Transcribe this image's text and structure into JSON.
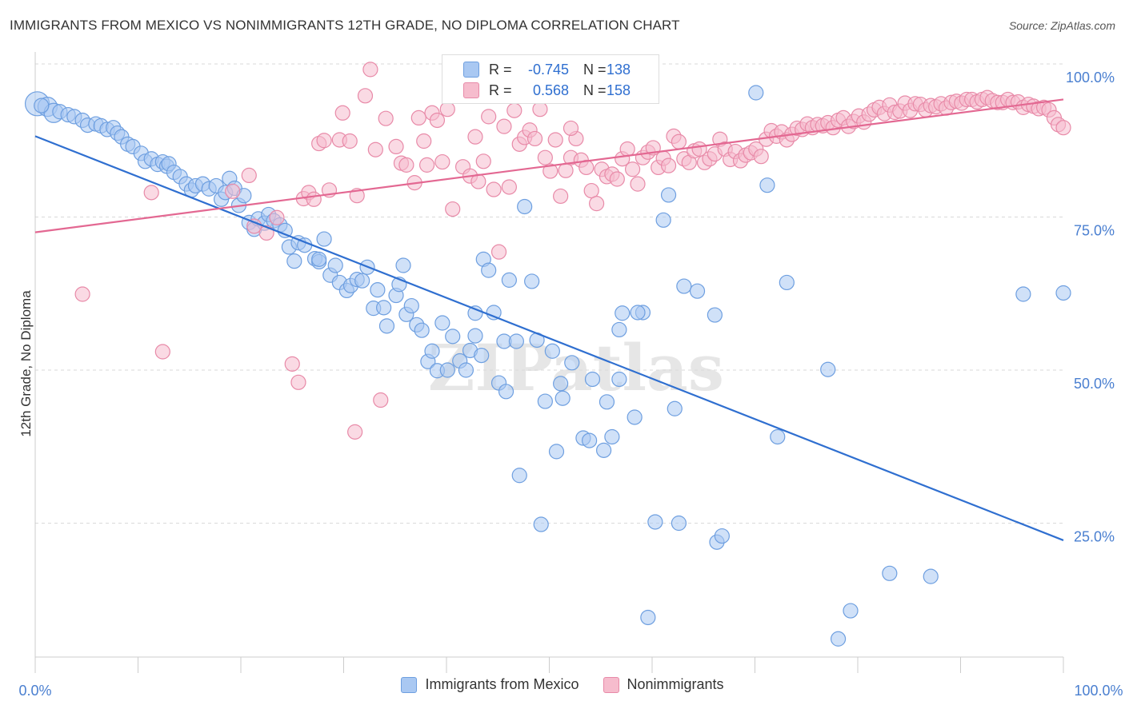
{
  "header": {
    "title": "IMMIGRANTS FROM MEXICO VS NONIMMIGRANTS 12TH GRADE, NO DIPLOMA CORRELATION CHART",
    "source": "Source: ZipAtlas.com"
  },
  "stats": {
    "series1": {
      "r_label": "R =",
      "r_value": "-0.745",
      "n_label": "N =",
      "n_value": "138"
    },
    "series2": {
      "r_label": "R =",
      "r_value": "0.568",
      "n_label": "N =",
      "n_value": "158"
    }
  },
  "legend": {
    "series1": "Immigrants from Mexico",
    "series2": "Nonimmigrants"
  },
  "colors": {
    "series1_fill": "#a9c8f2",
    "series1_stroke": "#6e9fe0",
    "series1_line": "#2f6fd0",
    "series2_fill": "#f6bccd",
    "series2_stroke": "#e88aa8",
    "series2_line": "#e36892",
    "axis_text": "#4a7fd0",
    "grid": "#d9d9d9"
  },
  "chart_data": {
    "type": "scatter",
    "title": "IMMIGRANTS FROM MEXICO VS NONIMMIGRANTS 12TH GRADE, NO DIPLOMA CORRELATION CHART",
    "xlabel": "",
    "ylabel": "12th Grade, No Diploma",
    "xlim": [
      0,
      100
    ],
    "ylim": [
      0,
      102
    ],
    "x_tick_labels": [
      "0.0%",
      "100.0%"
    ],
    "y_tick_values": [
      25,
      50,
      75,
      100
    ],
    "y_tick_labels": [
      "25.0%",
      "50.0%",
      "75.0%",
      "100.0%"
    ],
    "grid": true,
    "legend_position": "bottom-center",
    "watermark": "ZIPatlas",
    "series": [
      {
        "name": "Immigrants from Mexico",
        "r": -0.745,
        "n": 138,
        "trend": {
          "x": [
            0,
            100
          ],
          "y": [
            88.2,
            22.2
          ]
        },
        "points": [
          [
            0.2,
            93.5
          ],
          [
            1.2,
            93
          ],
          [
            1.8,
            92
          ],
          [
            2.4,
            92.2
          ],
          [
            3.2,
            91.7
          ],
          [
            3.8,
            91.4
          ],
          [
            4.6,
            90.8
          ],
          [
            5.1,
            90
          ],
          [
            5.9,
            90.2
          ],
          [
            6.4,
            89.9
          ],
          [
            7,
            89.3
          ],
          [
            7.6,
            89.6
          ],
          [
            8,
            88.7
          ],
          [
            8.4,
            88.1
          ],
          [
            9,
            86.9
          ],
          [
            9.5,
            86.5
          ],
          [
            10.3,
            85.4
          ],
          [
            10.7,
            84.1
          ],
          [
            11.3,
            84.5
          ],
          [
            11.9,
            83.6
          ],
          [
            12.4,
            84
          ],
          [
            12.8,
            83.3
          ],
          [
            13,
            83.7
          ],
          [
            13.5,
            82.3
          ],
          [
            14.1,
            81.6
          ],
          [
            14.7,
            80.4
          ],
          [
            15.2,
            79.4
          ],
          [
            15.6,
            80.1
          ],
          [
            16.3,
            80.4
          ],
          [
            16.9,
            79.6
          ],
          [
            17.6,
            80.1
          ],
          [
            18.1,
            77.9
          ],
          [
            18.5,
            79
          ],
          [
            18.9,
            81.3
          ],
          [
            19.4,
            79.7
          ],
          [
            19.8,
            76.9
          ],
          [
            20.3,
            78.5
          ],
          [
            20.8,
            74.1
          ],
          [
            21.3,
            73
          ],
          [
            21.7,
            74.7
          ],
          [
            22.3,
            74
          ],
          [
            22.7,
            75.4
          ],
          [
            23.2,
            74.4
          ],
          [
            23.8,
            73.7
          ],
          [
            24.3,
            72.8
          ],
          [
            24.7,
            70.1
          ],
          [
            25.2,
            67.8
          ],
          [
            25.6,
            70.8
          ],
          [
            26.2,
            70.4
          ],
          [
            27.2,
            68.2
          ],
          [
            27.6,
            67.7
          ],
          [
            28.1,
            71.4
          ],
          [
            28.7,
            65.5
          ],
          [
            29.2,
            67.1
          ],
          [
            29.6,
            64.3
          ],
          [
            30.3,
            63
          ],
          [
            30.7,
            63.8
          ],
          [
            31.3,
            64.8
          ],
          [
            31.8,
            64.6
          ],
          [
            32.3,
            66.8
          ],
          [
            32.9,
            60.1
          ],
          [
            33.3,
            63.1
          ],
          [
            33.9,
            60.2
          ],
          [
            34.2,
            57.2
          ],
          [
            35.1,
            62.2
          ],
          [
            35.4,
            64
          ],
          [
            35.8,
            67.1
          ],
          [
            36.1,
            59.1
          ],
          [
            36.6,
            60.5
          ],
          [
            37.1,
            57.4
          ],
          [
            37.6,
            56.5
          ],
          [
            38.2,
            51.4
          ],
          [
            38.6,
            53.1
          ],
          [
            39.1,
            49.9
          ],
          [
            39.6,
            57.7
          ],
          [
            40.1,
            50
          ],
          [
            40.6,
            55.5
          ],
          [
            41.3,
            51.5
          ],
          [
            41.9,
            50
          ],
          [
            42.3,
            53.2
          ],
          [
            42.8,
            55.6
          ],
          [
            43.4,
            52.4
          ],
          [
            43.6,
            68.1
          ],
          [
            44.1,
            66.3
          ],
          [
            44.6,
            59.4
          ],
          [
            45.1,
            47.9
          ],
          [
            45.6,
            54.7
          ],
          [
            45.8,
            46.5
          ],
          [
            46.1,
            64.7
          ],
          [
            46.8,
            54.7
          ],
          [
            47.1,
            32.8
          ],
          [
            47.6,
            76.7
          ],
          [
            48.3,
            64.5
          ],
          [
            48.8,
            54.9
          ],
          [
            49.2,
            24.8
          ],
          [
            49.6,
            44.9
          ],
          [
            50.3,
            53.1
          ],
          [
            50.7,
            36.7
          ],
          [
            51.1,
            47.8
          ],
          [
            51.3,
            45.4
          ],
          [
            52.2,
            51.2
          ],
          [
            53.3,
            38.9
          ],
          [
            53.9,
            38.5
          ],
          [
            54.2,
            48.5
          ],
          [
            55.3,
            36.9
          ],
          [
            55.6,
            44.8
          ],
          [
            56.1,
            39.1
          ],
          [
            56.8,
            56.6
          ],
          [
            57.1,
            59.3
          ],
          [
            58.3,
            42.3
          ],
          [
            59.1,
            59.4
          ],
          [
            59.6,
            9.6
          ],
          [
            60.3,
            25.2
          ],
          [
            61.1,
            74.5
          ],
          [
            61.6,
            78.6
          ],
          [
            62.2,
            43.7
          ],
          [
            62.6,
            25
          ],
          [
            63.1,
            63.7
          ],
          [
            64.4,
            62.9
          ],
          [
            66.1,
            59
          ],
          [
            66.3,
            21.9
          ],
          [
            66.8,
            22.9
          ],
          [
            70.1,
            95.3
          ],
          [
            71.2,
            80.2
          ],
          [
            72.2,
            39.1
          ],
          [
            73.1,
            64.3
          ],
          [
            77.1,
            50.1
          ],
          [
            78.1,
            6.1
          ],
          [
            79.3,
            10.7
          ],
          [
            83.1,
            16.8
          ],
          [
            87.1,
            16.3
          ],
          [
            96.1,
            62.4
          ],
          [
            100,
            62.6
          ],
          [
            0.6,
            93.2
          ],
          [
            58.6,
            59.4
          ],
          [
            56.8,
            48.5
          ],
          [
            27.6,
            68.1
          ],
          [
            42.8,
            59.3
          ]
        ]
      },
      {
        "name": "Nonimmigrants",
        "r": 0.568,
        "n": 158,
        "trend": {
          "x": [
            0,
            100
          ],
          "y": [
            72.5,
            94.2
          ]
        },
        "points": [
          [
            4.6,
            62.4
          ],
          [
            11.3,
            79
          ],
          [
            12.4,
            53
          ],
          [
            19.2,
            79.2
          ],
          [
            20.8,
            81.8
          ],
          [
            21.3,
            73.5
          ],
          [
            22.5,
            72.4
          ],
          [
            23.5,
            74.9
          ],
          [
            25,
            51
          ],
          [
            25.6,
            48
          ],
          [
            26.1,
            78
          ],
          [
            26.6,
            79
          ],
          [
            27.1,
            77.9
          ],
          [
            27.6,
            87
          ],
          [
            28.1,
            87.5
          ],
          [
            28.6,
            79.4
          ],
          [
            29.6,
            87.6
          ],
          [
            29.9,
            92
          ],
          [
            30.6,
            87.4
          ],
          [
            31.1,
            39.9
          ],
          [
            31.3,
            78.5
          ],
          [
            32.1,
            94.8
          ],
          [
            32.6,
            99.1
          ],
          [
            33.1,
            86
          ],
          [
            33.6,
            45.1
          ],
          [
            34.1,
            91.1
          ],
          [
            35.1,
            86.5
          ],
          [
            35.6,
            83.8
          ],
          [
            36.1,
            83.5
          ],
          [
            36.9,
            80.6
          ],
          [
            37.3,
            91.2
          ],
          [
            37.8,
            87.4
          ],
          [
            38.1,
            83.5
          ],
          [
            38.6,
            92
          ],
          [
            39.1,
            90.8
          ],
          [
            39.6,
            84
          ],
          [
            40.1,
            92.6
          ],
          [
            40.6,
            76.3
          ],
          [
            41.1,
            94.8
          ],
          [
            41.6,
            83.2
          ],
          [
            42.3,
            81.7
          ],
          [
            42.8,
            88.1
          ],
          [
            43.1,
            80.8
          ],
          [
            43.6,
            84.1
          ],
          [
            44.1,
            91.4
          ],
          [
            44.6,
            79.5
          ],
          [
            45.1,
            69.3
          ],
          [
            45.6,
            89.8
          ],
          [
            46.1,
            79.9
          ],
          [
            46.6,
            92.4
          ],
          [
            47.1,
            86.9
          ],
          [
            47.6,
            88
          ],
          [
            48.1,
            89.2
          ],
          [
            48.6,
            87.8
          ],
          [
            49.1,
            92.6
          ],
          [
            49.6,
            84.7
          ],
          [
            50.1,
            82.5
          ],
          [
            50.6,
            87.6
          ],
          [
            51.1,
            78.4
          ],
          [
            51.6,
            82.6
          ],
          [
            52.1,
            84.7
          ],
          [
            52.6,
            87.8
          ],
          [
            53.1,
            84.3
          ],
          [
            53.6,
            83.1
          ],
          [
            54.1,
            79.3
          ],
          [
            54.6,
            77.2
          ],
          [
            55.1,
            82.8
          ],
          [
            55.6,
            81.6
          ],
          [
            56.1,
            82
          ],
          [
            56.6,
            81.2
          ],
          [
            57.1,
            84.5
          ],
          [
            57.6,
            86.1
          ],
          [
            58.1,
            82.8
          ],
          [
            58.6,
            80.4
          ],
          [
            59.1,
            84.7
          ],
          [
            59.6,
            85.6
          ],
          [
            60.1,
            86.3
          ],
          [
            60.6,
            83.1
          ],
          [
            61.1,
            84.6
          ],
          [
            61.6,
            83.4
          ],
          [
            62.1,
            88.2
          ],
          [
            62.6,
            87.3
          ],
          [
            63.1,
            84.5
          ],
          [
            63.6,
            83.9
          ],
          [
            64.1,
            85.8
          ],
          [
            64.6,
            86.1
          ],
          [
            65.1,
            83.9
          ],
          [
            65.6,
            84.5
          ],
          [
            66.1,
            85.3
          ],
          [
            66.6,
            87.7
          ],
          [
            67.1,
            86.1
          ],
          [
            67.6,
            84.4
          ],
          [
            68.1,
            85.7
          ],
          [
            68.6,
            84.2
          ],
          [
            69.1,
            85.1
          ],
          [
            69.6,
            85.5
          ],
          [
            70.1,
            86.1
          ],
          [
            70.6,
            84.9
          ],
          [
            71.1,
            87.7
          ],
          [
            71.6,
            89.1
          ],
          [
            72.1,
            88.2
          ],
          [
            72.6,
            88.9
          ],
          [
            73.1,
            87.6
          ],
          [
            73.6,
            88.5
          ],
          [
            74.1,
            89.5
          ],
          [
            74.6,
            89.3
          ],
          [
            75.1,
            90.2
          ],
          [
            75.6,
            89.6
          ],
          [
            76.1,
            90.1
          ],
          [
            76.6,
            89.9
          ],
          [
            77.1,
            90.4
          ],
          [
            77.6,
            89.6
          ],
          [
            78.1,
            90.8
          ],
          [
            78.6,
            91.2
          ],
          [
            79.1,
            89.8
          ],
          [
            79.6,
            90.6
          ],
          [
            80.1,
            91.5
          ],
          [
            80.6,
            90.5
          ],
          [
            81.1,
            91.8
          ],
          [
            81.6,
            92.5
          ],
          [
            82.1,
            92.9
          ],
          [
            82.6,
            91.9
          ],
          [
            83.1,
            93.3
          ],
          [
            83.6,
            92.1
          ],
          [
            84.1,
            92.3
          ],
          [
            84.6,
            93.6
          ],
          [
            85.1,
            92.4
          ],
          [
            85.6,
            93.5
          ],
          [
            86.1,
            93.4
          ],
          [
            86.6,
            92.5
          ],
          [
            87.1,
            93.2
          ],
          [
            87.6,
            93
          ],
          [
            88.1,
            93.5
          ],
          [
            88.6,
            92.8
          ],
          [
            89.1,
            93.7
          ],
          [
            89.6,
            93.9
          ],
          [
            90.1,
            93.6
          ],
          [
            90.6,
            94.2
          ],
          [
            91.1,
            94.2
          ],
          [
            91.6,
            93.8
          ],
          [
            92.1,
            94.2
          ],
          [
            92.6,
            94.5
          ],
          [
            93.1,
            94
          ],
          [
            93.6,
            93.7
          ],
          [
            94.1,
            93.7
          ],
          [
            94.6,
            94.2
          ],
          [
            95.1,
            93.7
          ],
          [
            95.6,
            93.8
          ],
          [
            96.1,
            92.9
          ],
          [
            96.6,
            93.4
          ],
          [
            97.1,
            93.1
          ],
          [
            97.6,
            92.7
          ],
          [
            98.1,
            92.9
          ],
          [
            98.6,
            92.5
          ],
          [
            99.1,
            91.2
          ],
          [
            99.5,
            90.1
          ],
          [
            100,
            89.6
          ],
          [
            52.1,
            89.5
          ]
        ]
      }
    ]
  }
}
